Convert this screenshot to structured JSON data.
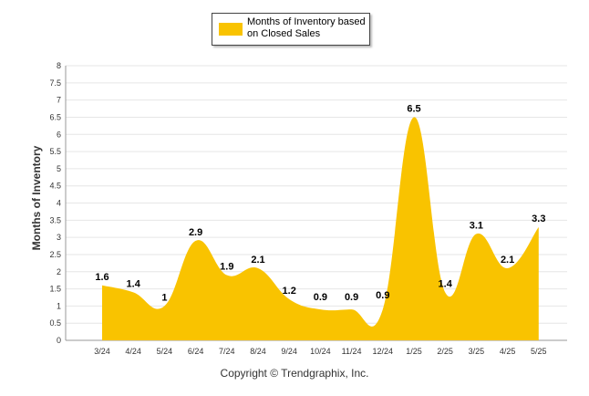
{
  "chart_data": {
    "type": "area",
    "categories": [
      "3/24",
      "4/24",
      "5/24",
      "6/24",
      "7/24",
      "8/24",
      "9/24",
      "10/24",
      "11/24",
      "12/24",
      "1/25",
      "2/25",
      "3/25",
      "4/25",
      "5/25"
    ],
    "series": [
      {
        "name": "Months of Inventory based on Closed Sales",
        "values": [
          1.6,
          1.4,
          1,
          2.9,
          1.9,
          2.1,
          1.2,
          0.9,
          0.9,
          0.9,
          6.5,
          1.4,
          3.1,
          2.1,
          3.3
        ],
        "color": "#F9C300"
      }
    ],
    "data_labels": [
      "1.6",
      "1.4",
      "1",
      "2.9",
      "1.9",
      "2.1",
      "1.2",
      "0.9",
      "0.9",
      "0.9",
      "6.5",
      "1.4",
      "3.1",
      "2.1",
      "3.3"
    ],
    "yticks": [
      "0",
      "0.5",
      "1",
      "1.5",
      "2",
      "2.5",
      "3",
      "3.5",
      "4",
      "4.5",
      "5",
      "5.5",
      "6",
      "6.5",
      "7",
      "7.5",
      "8"
    ],
    "ylim": [
      0,
      8
    ],
    "ylabel": "Months of Inventory",
    "xlabel": "",
    "legend": "top-center",
    "grid": true
  },
  "footer": "Copyright © Trendgraphix, Inc."
}
